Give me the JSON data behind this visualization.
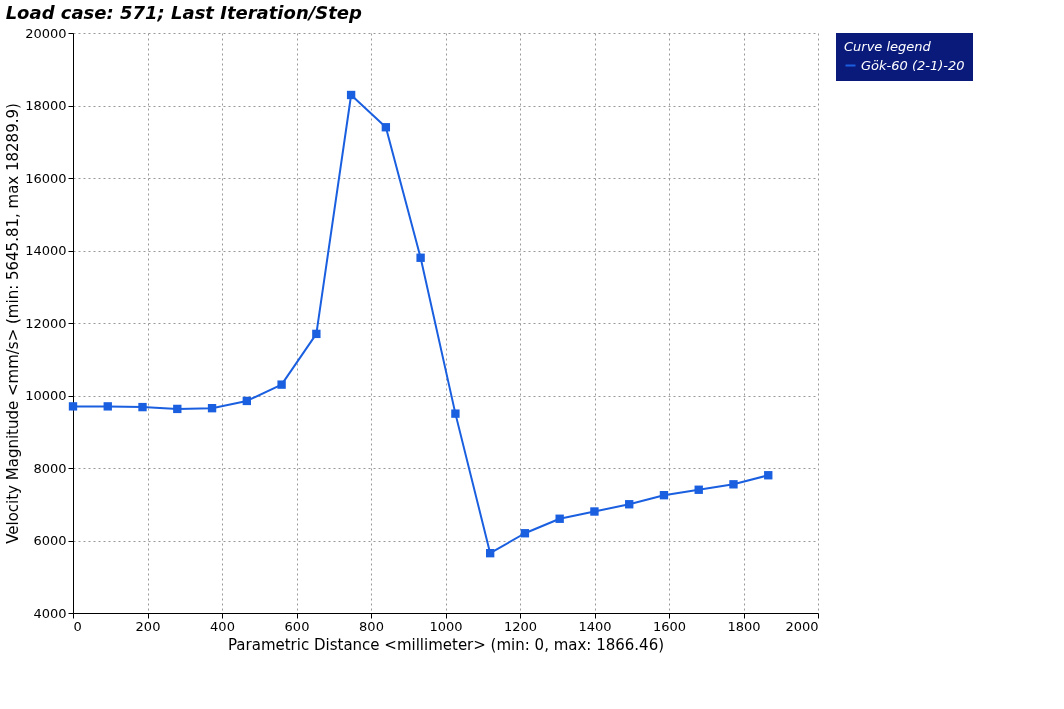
{
  "chart_data": {
    "type": "line",
    "title": "Load case: 571; Last Iteration/Step",
    "xlabel": "Parametric Distance <millimeter> (min: 0, max: 1866.46)",
    "ylabel": "Velocity Magnitude <mm/s> (min: 5645.81, max 18289.9)",
    "legend_title": "Curve legend",
    "x": [
      0,
      93.3,
      186.6,
      280,
      373.3,
      466.6,
      560,
      653.3,
      746.6,
      839.9,
      933.2,
      1026.6,
      1119.9,
      1213.2,
      1306.5,
      1399.8,
      1493.2,
      1586.5,
      1679.8,
      1773.1,
      1866.46
    ],
    "series": [
      {
        "name": "Gök-60 (2-1)-20",
        "color": "#1a5fe0",
        "values": [
          9700,
          9700,
          9680,
          9630,
          9650,
          9850,
          10300,
          11700,
          18290,
          17400,
          13800,
          9500,
          5650,
          6200,
          6600,
          6800,
          7000,
          7250,
          7400,
          7550,
          7800
        ]
      }
    ],
    "xlim": [
      0,
      2000
    ],
    "xticks": [
      0,
      200,
      400,
      600,
      800,
      1000,
      1200,
      1400,
      1600,
      1800,
      2000
    ],
    "ylim": [
      4000,
      20000
    ],
    "yticks": [
      4000,
      6000,
      8000,
      10000,
      12000,
      14000,
      16000,
      18000,
      20000
    ],
    "grid": true,
    "legend": "top right",
    "marker": "square",
    "line_style": "solid"
  }
}
